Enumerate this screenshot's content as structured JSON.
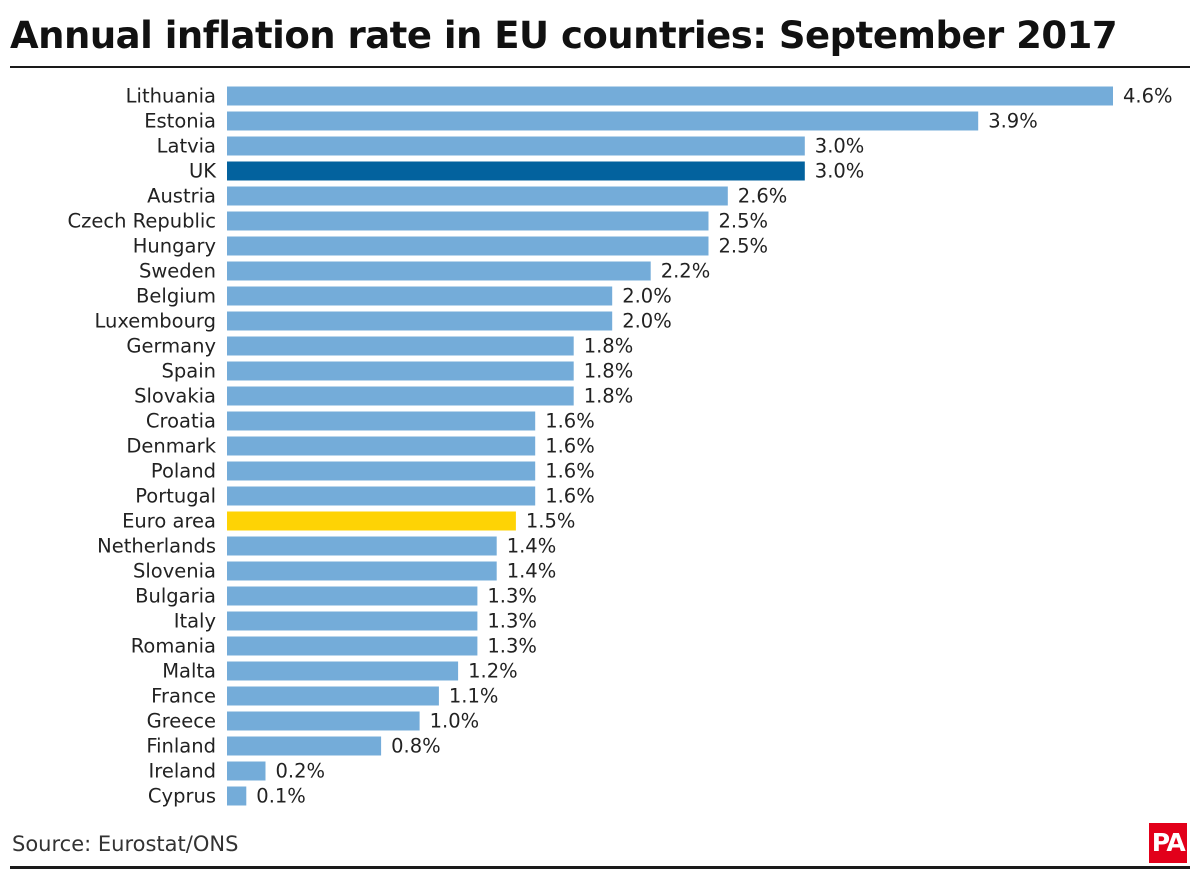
{
  "page": {
    "title": "Annual inflation rate in EU countries: September 2017",
    "source": "Source: Eurostat/ONS",
    "logo": "PA"
  },
  "colors": {
    "default_bar": "#74acd9",
    "uk_bar": "#03629e",
    "euro_area_bar": "#fed305",
    "label_text": "#222222"
  },
  "chart_data": {
    "type": "bar",
    "orientation": "horizontal",
    "title": "Annual inflation rate in EU countries: September 2017",
    "xlabel": "",
    "ylabel": "",
    "value_suffix": "%",
    "xlim": [
      0,
      4.6
    ],
    "grid": false,
    "legend": "none",
    "categories": [
      "Lithuania",
      "Estonia",
      "Latvia",
      "UK",
      "Austria",
      "Czech Republic",
      "Hungary",
      "Sweden",
      "Belgium",
      "Luxembourg",
      "Germany",
      "Spain",
      "Slovakia",
      "Croatia",
      "Denmark",
      "Poland",
      "Portugal",
      "Euro area",
      "Netherlands",
      "Slovenia",
      "Bulgaria",
      "Italy",
      "Romania",
      "Malta",
      "France",
      "Greece",
      "Finland",
      "Ireland",
      "Cyprus"
    ],
    "values": [
      4.6,
      3.9,
      3.0,
      3.0,
      2.6,
      2.5,
      2.5,
      2.2,
      2.0,
      2.0,
      1.8,
      1.8,
      1.8,
      1.6,
      1.6,
      1.6,
      1.6,
      1.5,
      1.4,
      1.4,
      1.3,
      1.3,
      1.3,
      1.2,
      1.1,
      1.0,
      0.8,
      0.2,
      0.1
    ],
    "value_labels": [
      "4.6%",
      "3.9%",
      "3.0%",
      "3.0%",
      "2.6%",
      "2.5%",
      "2.5%",
      "2.2%",
      "2.0%",
      "2.0%",
      "1.8%",
      "1.8%",
      "1.8%",
      "1.6%",
      "1.6%",
      "1.6%",
      "1.6%",
      "1.5%",
      "1.4%",
      "1.4%",
      "1.3%",
      "1.3%",
      "1.3%",
      "1.2%",
      "1.1%",
      "1.0%",
      "0.8%",
      "0.2%",
      "0.1%"
    ],
    "highlights": {
      "UK": "#03629e",
      "Euro area": "#fed305"
    }
  }
}
